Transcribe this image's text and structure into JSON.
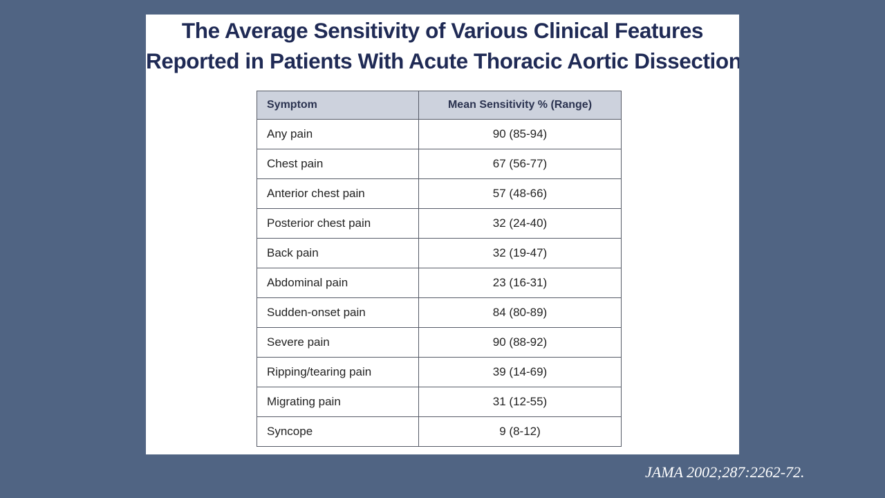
{
  "title": {
    "line1": "The Average Sensitivity of Various Clinical Features",
    "line2": "Reported in Patients With Acute Thoracic Aortic Dissection"
  },
  "table": {
    "headers": [
      "Symptom",
      "Mean Sensitivity % (Range)"
    ],
    "rows": [
      {
        "symptom": "Any pain",
        "sensitivity": "90 (85-94)"
      },
      {
        "symptom": "Chest pain",
        "sensitivity": "67 (56-77)"
      },
      {
        "symptom": "Anterior chest pain",
        "sensitivity": "57 (48-66)"
      },
      {
        "symptom": "Posterior chest pain",
        "sensitivity": "32 (24-40)"
      },
      {
        "symptom": "Back pain",
        "sensitivity": "32 (19-47)"
      },
      {
        "symptom": "Abdominal pain",
        "sensitivity": "23 (16-31)"
      },
      {
        "symptom": "Sudden-onset pain",
        "sensitivity": "84 (80-89)"
      },
      {
        "symptom": "Severe pain",
        "sensitivity": "90 (88-92)"
      },
      {
        "symptom": "Ripping/tearing pain",
        "sensitivity": "39 (14-69)"
      },
      {
        "symptom": "Migrating pain",
        "sensitivity": "31 (12-55)"
      },
      {
        "symptom": "Syncope",
        "sensitivity": "9 (8-12)"
      }
    ]
  },
  "citation": "JAMA 2002;287:2262-72.",
  "colors": {
    "background": "#506483",
    "title_text": "#1f2a55",
    "header_fill": "#cdd2dd",
    "citation_text": "#ffffff"
  }
}
